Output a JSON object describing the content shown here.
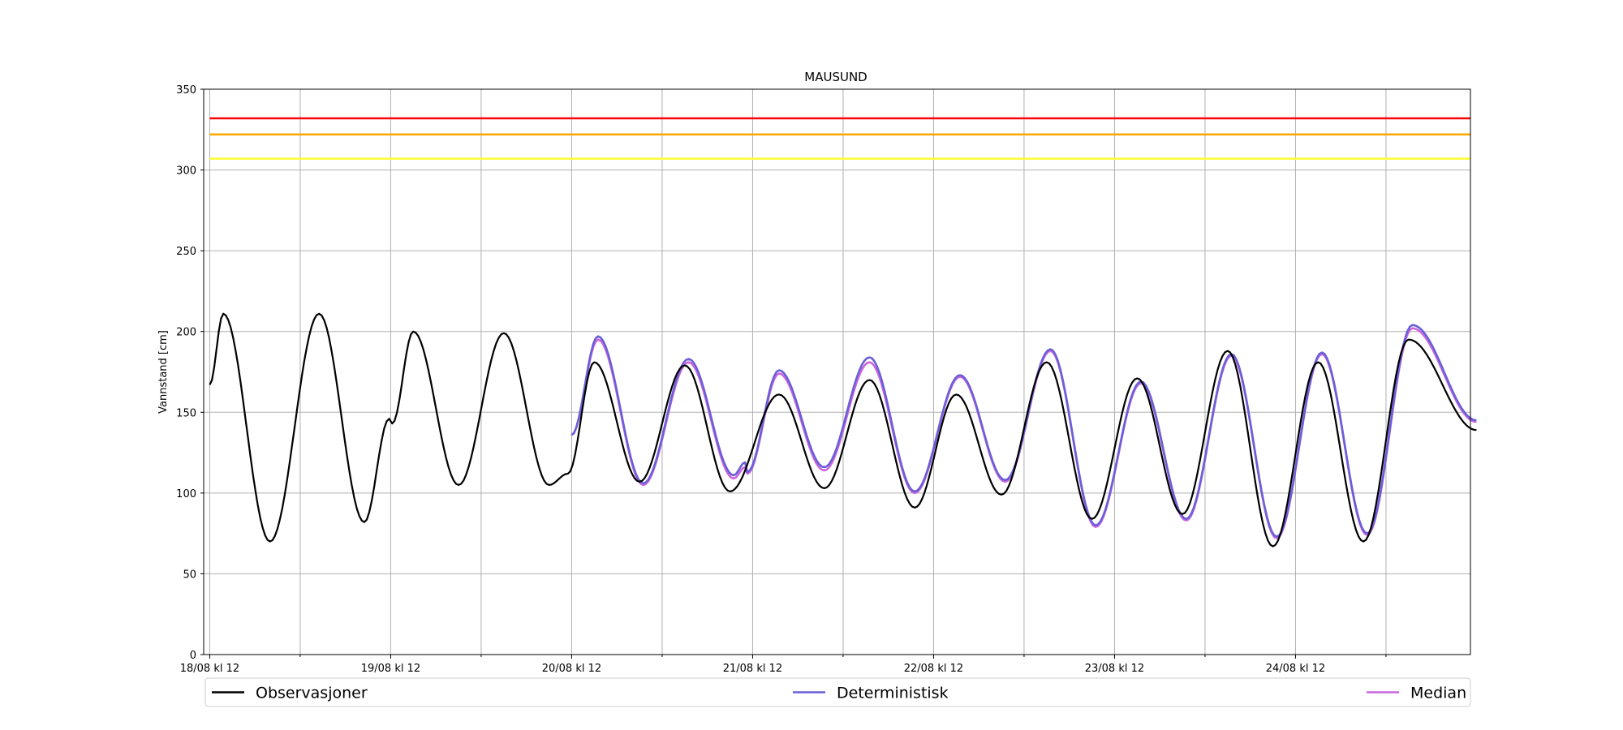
{
  "chart_data": {
    "type": "line",
    "title": "MAUSUND",
    "xlabel": "",
    "ylabel": "Vannstand [cm]",
    "ylim": [
      0,
      350
    ],
    "yticks": [
      0,
      50,
      100,
      150,
      200,
      250,
      300,
      350
    ],
    "x_unit": "hours since 18/08 kl 12",
    "xlim": [
      -0.8,
      167.2
    ],
    "x_ticks": [
      0,
      24,
      48,
      72,
      96,
      120,
      144
    ],
    "x_tick_labels": [
      "18/08 kl 12",
      "19/08 kl 12",
      "20/08 kl 12",
      "21/08 kl 12",
      "22/08 kl 12",
      "23/08 kl 12",
      "24/08 kl 12"
    ],
    "x_minor_ticks": [
      12,
      36,
      60,
      84,
      108,
      132,
      156
    ],
    "grid": true,
    "legend_position": "bottom",
    "thresholds": [
      {
        "value": 332,
        "color": "#ff0000"
      },
      {
        "value": 322,
        "color": "#ffa500"
      },
      {
        "value": 307,
        "color": "#ffff33"
      }
    ],
    "series": [
      {
        "name": "Observasjoner",
        "color": "#000000",
        "points": [
          [
            0,
            167
          ],
          [
            1.8,
            211
          ],
          [
            8,
            70
          ],
          [
            14.5,
            211
          ],
          [
            20.5,
            82
          ],
          [
            23.8,
            146
          ],
          [
            24.2,
            143
          ],
          [
            27,
            200
          ],
          [
            33,
            105
          ],
          [
            39,
            199
          ],
          [
            45,
            105
          ],
          [
            47.5,
            112
          ],
          [
            51,
            181
          ],
          [
            57,
            107
          ],
          [
            63,
            179
          ],
          [
            69,
            101
          ],
          [
            75.5,
            161
          ],
          [
            81.5,
            103
          ],
          [
            87.5,
            170
          ],
          [
            93.5,
            91
          ],
          [
            99,
            161
          ],
          [
            105,
            99
          ],
          [
            111,
            181
          ],
          [
            117,
            84
          ],
          [
            123,
            171
          ],
          [
            129,
            87
          ],
          [
            135,
            188
          ],
          [
            141,
            67
          ],
          [
            147,
            181
          ],
          [
            153,
            70
          ],
          [
            159,
            195
          ],
          [
            168,
            139
          ]
        ]
      },
      {
        "name": "Deterministisk",
        "color": "#6a5fd8",
        "points": [
          [
            48,
            136
          ],
          [
            51.5,
            197
          ],
          [
            57.5,
            106
          ],
          [
            63.5,
            183
          ],
          [
            69.5,
            111
          ],
          [
            71,
            119
          ],
          [
            71.3,
            113
          ],
          [
            75.5,
            176
          ],
          [
            81.5,
            116
          ],
          [
            87.5,
            184
          ],
          [
            93.5,
            101
          ],
          [
            99.5,
            173
          ],
          [
            105.5,
            108
          ],
          [
            111.5,
            189
          ],
          [
            117.5,
            80
          ],
          [
            123.5,
            169
          ],
          [
            129.5,
            84
          ],
          [
            135.5,
            186
          ],
          [
            141.5,
            73
          ],
          [
            147.5,
            187
          ],
          [
            153.5,
            75
          ],
          [
            159.5,
            204
          ],
          [
            168,
            145
          ]
        ]
      },
      {
        "name": "Median",
        "color": "#cc66dd",
        "points": [
          [
            48,
            136
          ],
          [
            51.5,
            195
          ],
          [
            57.5,
            105
          ],
          [
            63.5,
            181
          ],
          [
            69.5,
            109
          ],
          [
            71,
            116
          ],
          [
            71.3,
            112
          ],
          [
            75.5,
            174
          ],
          [
            81.5,
            114
          ],
          [
            87.5,
            181
          ],
          [
            93.5,
            100
          ],
          [
            99.5,
            172
          ],
          [
            105.5,
            107
          ],
          [
            111.5,
            188
          ],
          [
            117.5,
            79
          ],
          [
            123.5,
            168
          ],
          [
            129.5,
            83
          ],
          [
            135.5,
            185
          ],
          [
            141.5,
            72
          ],
          [
            147.5,
            186
          ],
          [
            153.5,
            74
          ],
          [
            159.5,
            202
          ],
          [
            168,
            144
          ]
        ]
      }
    ]
  }
}
